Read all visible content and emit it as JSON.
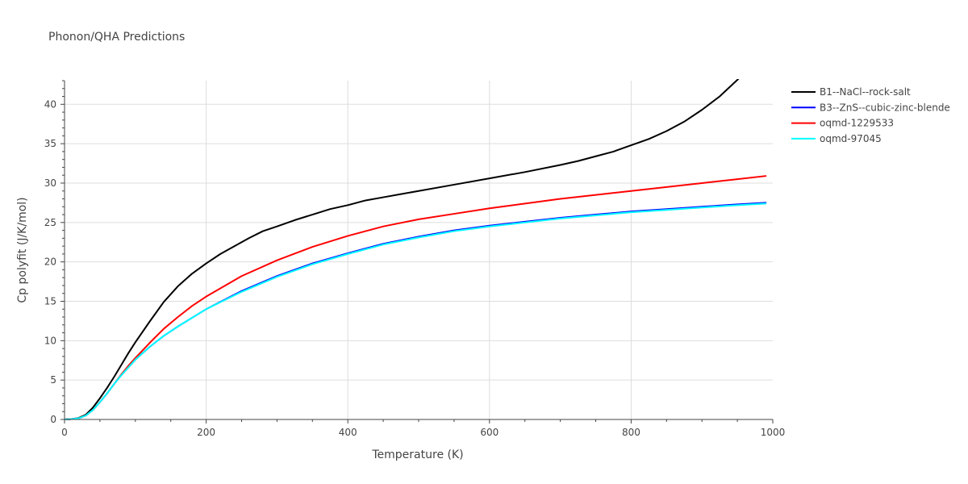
{
  "chart_data": {
    "type": "line",
    "title": "Phonon/QHA Predictions",
    "xlabel": "Temperature (K)",
    "ylabel": "Cp polyfit (J/K/mol)",
    "xlim": [
      0,
      1000
    ],
    "ylim": [
      0,
      43
    ],
    "xticks": [
      0,
      200,
      400,
      600,
      800,
      1000
    ],
    "yticks": [
      0,
      5,
      10,
      15,
      20,
      25,
      30,
      35,
      40
    ],
    "grid": true,
    "legend_position": "top-right",
    "series": [
      {
        "name": "B1--NaCl--rock-salt",
        "color": "#000000",
        "x": [
          0,
          10,
          20,
          30,
          40,
          50,
          60,
          70,
          80,
          90,
          100,
          120,
          140,
          160,
          180,
          200,
          220,
          240,
          260,
          280,
          300,
          325,
          350,
          375,
          400,
          425,
          450,
          475,
          500,
          550,
          600,
          650,
          700,
          725,
          750,
          775,
          800,
          825,
          850,
          875,
          900,
          925,
          950,
          970,
          990
        ],
        "y": [
          0,
          0.05,
          0.2,
          0.6,
          1.5,
          2.7,
          4.0,
          5.4,
          6.9,
          8.4,
          9.8,
          12.4,
          14.9,
          16.9,
          18.5,
          19.8,
          21.0,
          22.0,
          23.0,
          23.9,
          24.5,
          25.3,
          26.0,
          26.7,
          27.2,
          27.8,
          28.2,
          28.6,
          29.0,
          29.8,
          30.6,
          31.4,
          32.3,
          32.8,
          33.4,
          34.0,
          34.8,
          35.6,
          36.6,
          37.8,
          39.3,
          41.0,
          43.1,
          45.0,
          47.0
        ]
      },
      {
        "name": "B3--ZnS--cubic-zinc-blende",
        "color": "#0000ff",
        "x": [
          0,
          10,
          20,
          30,
          40,
          50,
          60,
          70,
          80,
          90,
          100,
          120,
          140,
          160,
          180,
          200,
          250,
          300,
          350,
          400,
          450,
          500,
          550,
          600,
          650,
          700,
          750,
          800,
          850,
          900,
          950,
          990
        ],
        "y": [
          0,
          0.05,
          0.15,
          0.5,
          1.2,
          2.2,
          3.3,
          4.5,
          5.6,
          6.6,
          7.6,
          9.2,
          10.6,
          11.8,
          12.9,
          14.0,
          16.3,
          18.2,
          19.8,
          21.1,
          22.3,
          23.2,
          24.0,
          24.6,
          25.1,
          25.6,
          26.0,
          26.4,
          26.7,
          27.0,
          27.3,
          27.5
        ]
      },
      {
        "name": "oqmd-1229533",
        "color": "#ff0000",
        "x": [
          0,
          10,
          20,
          30,
          40,
          50,
          60,
          70,
          80,
          90,
          100,
          120,
          140,
          160,
          180,
          200,
          250,
          300,
          350,
          400,
          450,
          500,
          550,
          600,
          650,
          700,
          750,
          800,
          850,
          900,
          950,
          990
        ],
        "y": [
          0,
          0.05,
          0.15,
          0.5,
          1.2,
          2.2,
          3.3,
          4.5,
          5.7,
          6.8,
          7.8,
          9.7,
          11.5,
          13.0,
          14.4,
          15.6,
          18.2,
          20.2,
          21.9,
          23.3,
          24.5,
          25.4,
          26.1,
          26.8,
          27.4,
          28.0,
          28.5,
          29.0,
          29.5,
          30.0,
          30.5,
          30.9
        ]
      },
      {
        "name": "oqmd-97045",
        "color": "#00ffff",
        "x": [
          0,
          10,
          20,
          30,
          40,
          50,
          60,
          70,
          80,
          90,
          100,
          120,
          140,
          160,
          180,
          200,
          250,
          300,
          350,
          400,
          450,
          500,
          550,
          600,
          650,
          700,
          750,
          800,
          850,
          900,
          950,
          990
        ],
        "y": [
          0,
          0.05,
          0.15,
          0.5,
          1.2,
          2.2,
          3.3,
          4.5,
          5.6,
          6.6,
          7.6,
          9.2,
          10.6,
          11.8,
          12.9,
          14.0,
          16.2,
          18.1,
          19.7,
          21.0,
          22.2,
          23.1,
          23.9,
          24.5,
          25.0,
          25.5,
          25.9,
          26.3,
          26.6,
          26.9,
          27.2,
          27.4
        ]
      }
    ]
  }
}
